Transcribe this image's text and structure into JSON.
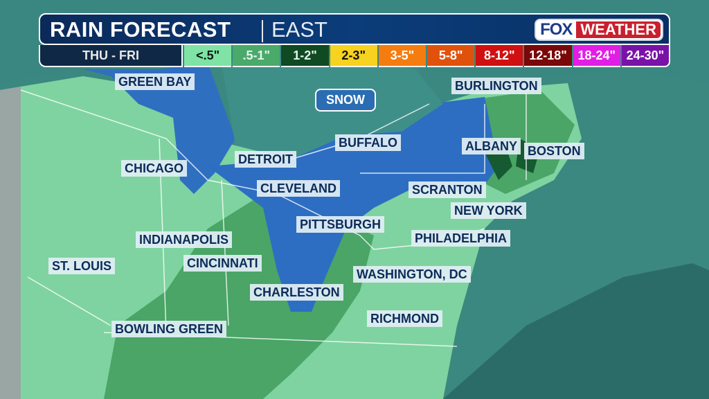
{
  "header": {
    "title": "RAIN FORECAST",
    "region": "EAST",
    "period": "THU - FRI",
    "logo": {
      "left": "FOX",
      "right": "WEATHER"
    }
  },
  "legend": [
    {
      "label": "<.5\"",
      "color": "#7ee3a4",
      "text": "#0d1a12"
    },
    {
      "label": ".5-1\"",
      "color": "#4aaa6a",
      "text": "#e8f5ee"
    },
    {
      "label": "1-2\"",
      "color": "#0f4a22",
      "text": "#e8f5ee"
    },
    {
      "label": "2-3\"",
      "color": "#f7d21f",
      "text": "#111111"
    },
    {
      "label": "3-5\"",
      "color": "#f57c0f",
      "text": "#ffffff"
    },
    {
      "label": "5-8\"",
      "color": "#e0520c",
      "text": "#ffffff"
    },
    {
      "label": "8-12\"",
      "color": "#d01010",
      "text": "#ffffff"
    },
    {
      "label": "12-18\"",
      "color": "#7a0808",
      "text": "#ffffff"
    },
    {
      "label": "18-24\"",
      "color": "#e21ee6",
      "text": "#ffffff"
    },
    {
      "label": "24-30\"",
      "color": "#7a12a8",
      "text": "#ffffff"
    }
  ],
  "snow_label": "SNOW",
  "cities": [
    "GREEN BAY",
    "BURLINGTON",
    "BUFFALO",
    "ALBANY",
    "BOSTON",
    "DETROIT",
    "CHICAGO",
    "CLEVELAND",
    "SCRANTON",
    "NEW YORK",
    "PITTSBURGH",
    "PHILADELPHIA",
    "INDIANAPOLIS",
    "CINCINNATI",
    "ST. LOUIS",
    "WASHINGTON, DC",
    "CHARLESTON",
    "RICHMOND",
    "BOWLING GREEN"
  ]
}
